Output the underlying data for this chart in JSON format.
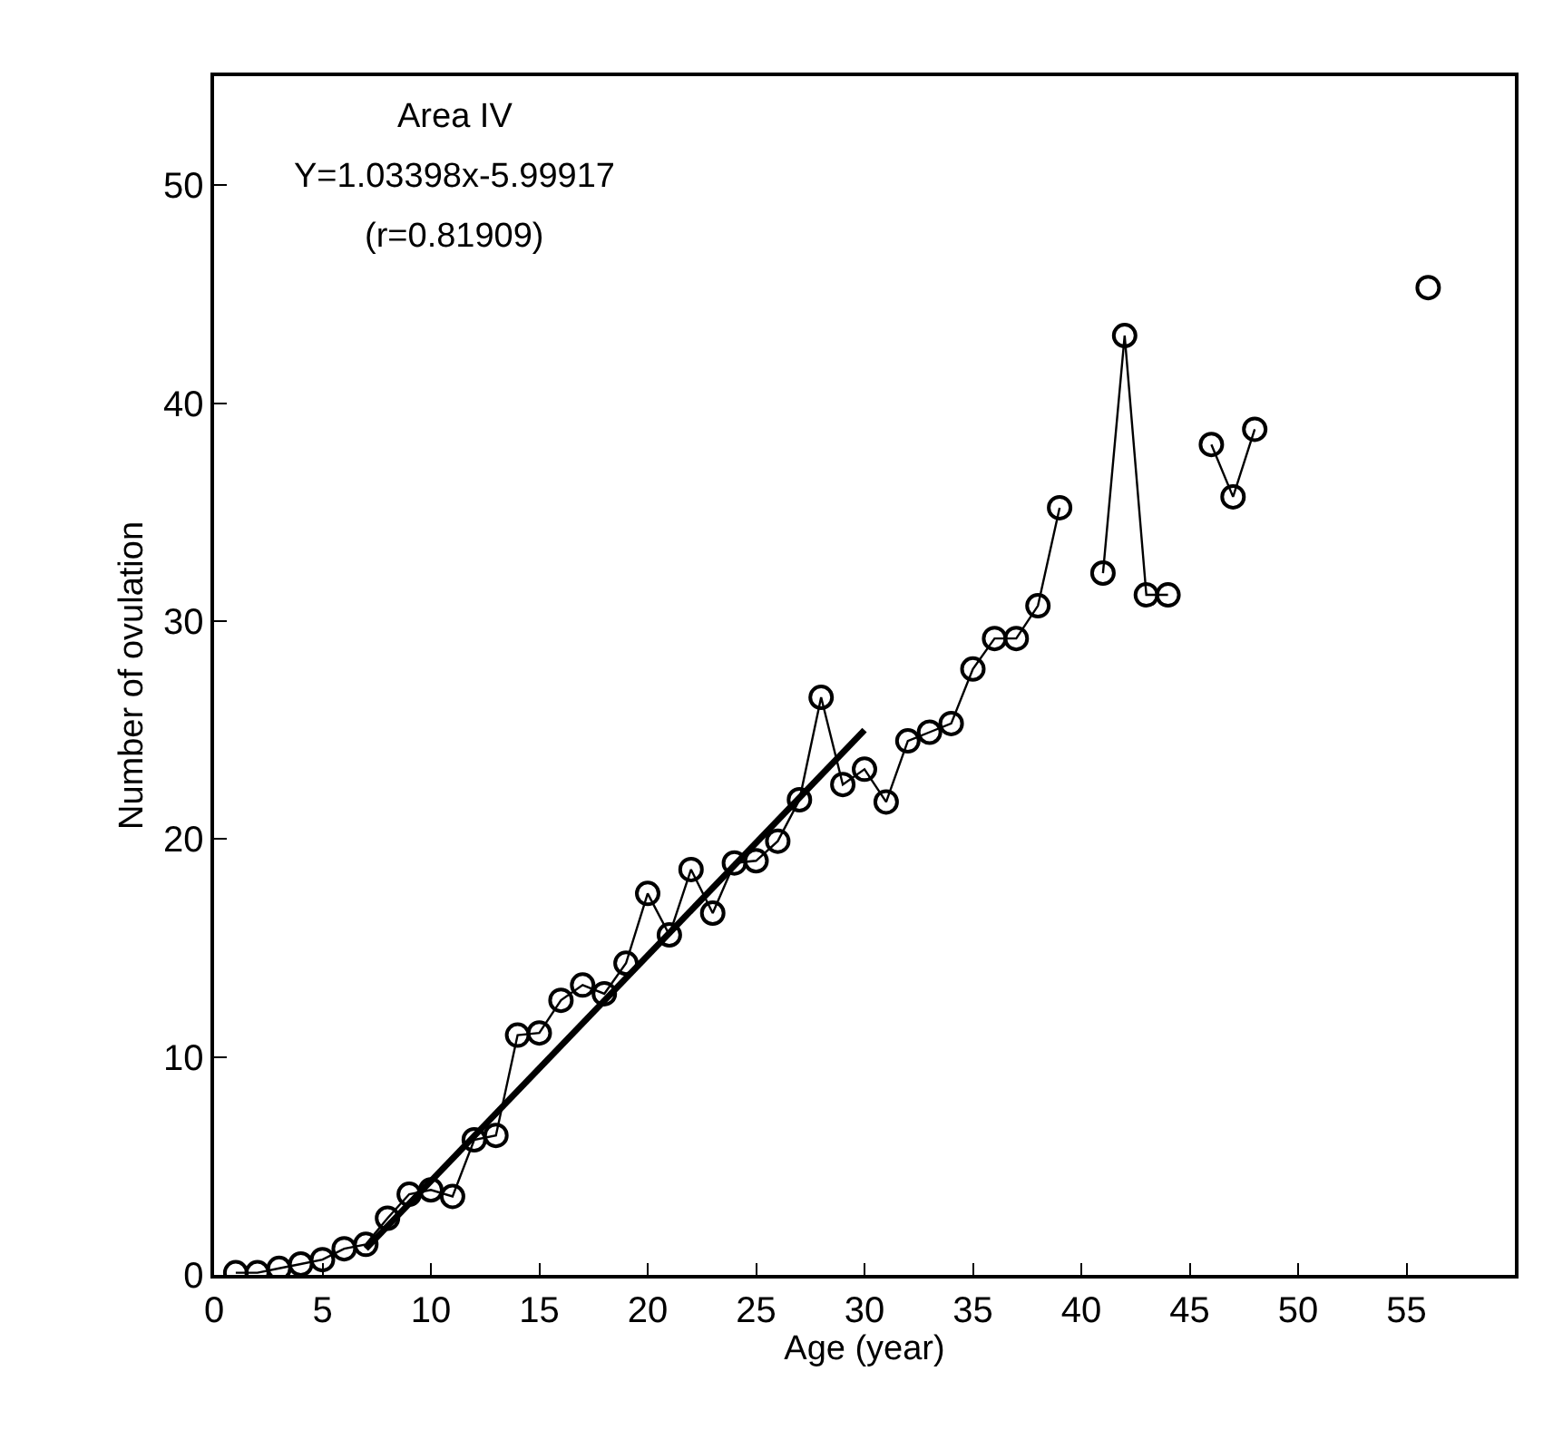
{
  "chart_data": {
    "type": "line",
    "xlabel": "Age (year)",
    "ylabel": "Number of ovulation",
    "annotations": [
      "Area IV",
      "Y=1.03398x-5.99917",
      "(r=0.81909)"
    ],
    "xlim": [
      0,
      60
    ],
    "xticks": [
      0,
      5,
      10,
      15,
      20,
      25,
      30,
      35,
      40,
      45,
      50,
      55
    ],
    "ylim": [
      0,
      55
    ],
    "yticks": [
      0,
      10,
      20,
      30,
      40,
      50
    ],
    "series": [
      {
        "color": "#000000",
        "marker": "circle",
        "line_style": "solid",
        "x": [
          1,
          2,
          3,
          4,
          5,
          6,
          7,
          8,
          9,
          10,
          11,
          12,
          13,
          14,
          15,
          16,
          17,
          18,
          19,
          20,
          21,
          22,
          23,
          24,
          25,
          26,
          27,
          28,
          29,
          30,
          31,
          32,
          33,
          34,
          35,
          36,
          37,
          38,
          39,
          40,
          41,
          42,
          43,
          44,
          45,
          46,
          47,
          48,
          49,
          56
        ],
        "values": [
          0.1,
          0.1,
          0.3,
          0.5,
          0.7,
          1.2,
          1.4,
          2.6,
          3.7,
          3.9,
          3.6,
          6.2,
          6.4,
          11.0,
          11.1,
          12.6,
          13.3,
          12.9,
          14.3,
          17.5,
          15.6,
          18.6,
          16.6,
          18.9,
          19.0,
          19.9,
          21.8,
          26.5,
          22.5,
          23.2,
          21.7,
          24.5,
          24.9,
          25.3,
          27.8,
          29.2,
          29.2,
          30.7,
          35.2,
          null,
          32.2,
          43.1,
          31.2,
          31.2,
          null,
          38.1,
          35.7,
          38.8,
          null,
          45.3
        ]
      },
      {
        "type": "line",
        "color": "#000000",
        "marker": "none",
        "line_style": "solid",
        "x": [
          7,
          30
        ],
        "values": [
          1.2,
          25.0
        ]
      }
    ]
  }
}
